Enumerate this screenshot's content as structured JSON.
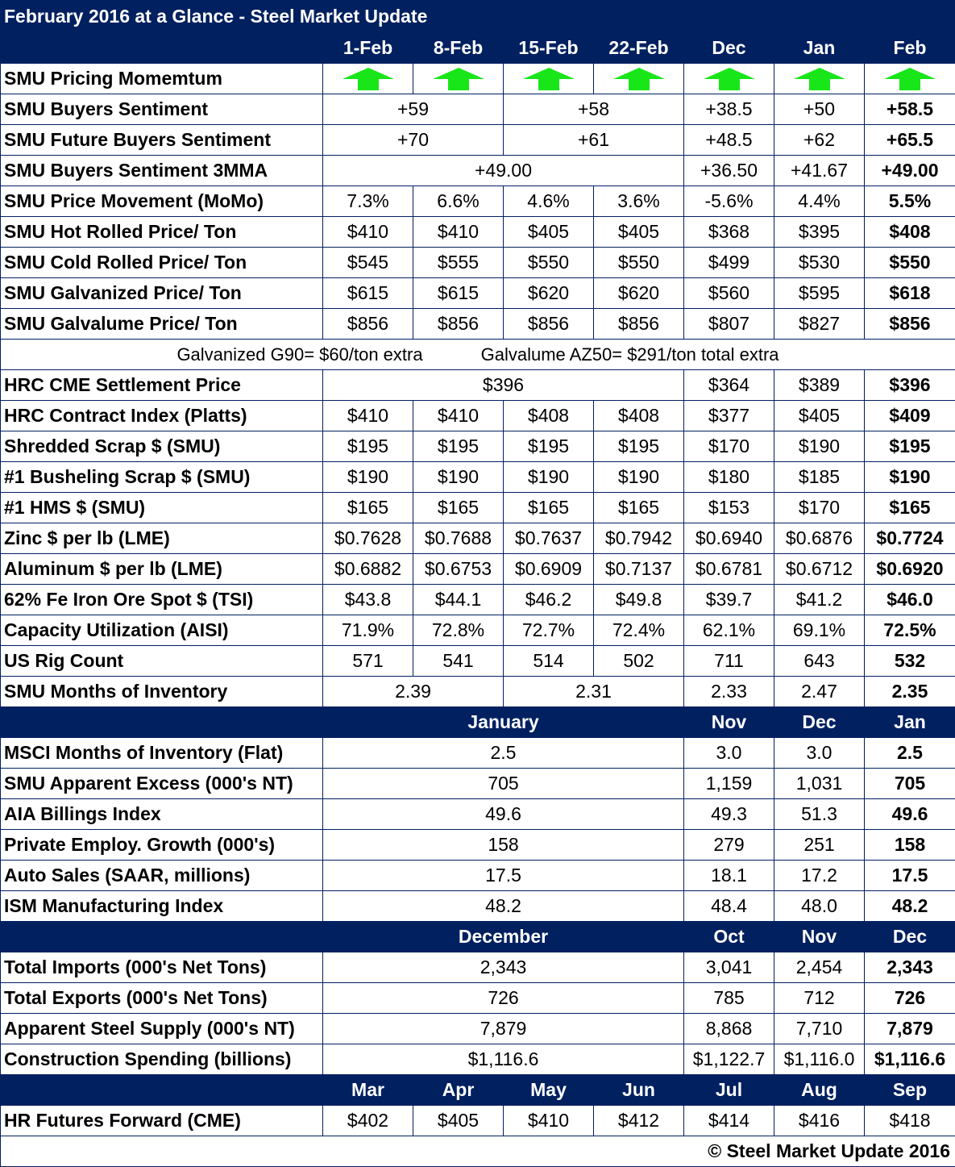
{
  "title": "February 2016 at a Glance - Steel Market Update",
  "colors": {
    "header_bg": "#002060",
    "arrow": "#19E619"
  },
  "header": [
    "1-Feb",
    "8-Feb",
    "15-Feb",
    "22-Feb",
    "Dec",
    "Jan",
    "Feb"
  ],
  "section1": [
    {
      "label": "SMU Pricing Momemtum",
      "cells": [
        {
          "icon": "up-arrow-icon"
        },
        {
          "icon": "up-arrow-icon"
        },
        {
          "icon": "up-arrow-icon"
        },
        {
          "icon": "up-arrow-icon"
        },
        {
          "icon": "up-arrow-icon"
        },
        {
          "icon": "up-arrow-icon"
        },
        {
          "icon": "up-arrow-icon"
        }
      ]
    },
    {
      "label": "SMU Buyers Sentiment",
      "cells": [
        {
          "v": "+59",
          "span": 2
        },
        {
          "v": "+58",
          "span": 2
        },
        {
          "v": "+38.5"
        },
        {
          "v": "+50"
        },
        {
          "v": "+58.5"
        }
      ]
    },
    {
      "label": "SMU Future Buyers Sentiment",
      "cells": [
        {
          "v": "+70",
          "span": 2
        },
        {
          "v": "+61",
          "span": 2
        },
        {
          "v": "+48.5"
        },
        {
          "v": "+62"
        },
        {
          "v": "+65.5"
        }
      ]
    },
    {
      "label": "SMU Buyers Sentiment 3MMA",
      "cells": [
        {
          "v": "+49.00",
          "span": 4
        },
        {
          "v": "+36.50"
        },
        {
          "v": "+41.67"
        },
        {
          "v": "+49.00"
        }
      ]
    },
    {
      "label": "SMU Price Movement (MoMo)",
      "cells": [
        {
          "v": "7.3%"
        },
        {
          "v": "6.6%"
        },
        {
          "v": "4.6%"
        },
        {
          "v": "3.6%"
        },
        {
          "v": "-5.6%"
        },
        {
          "v": "4.4%"
        },
        {
          "v": "5.5%"
        }
      ]
    },
    {
      "label": "SMU Hot Rolled Price/ Ton",
      "cells": [
        {
          "v": "$410"
        },
        {
          "v": "$410"
        },
        {
          "v": "$405"
        },
        {
          "v": "$405"
        },
        {
          "v": "$368"
        },
        {
          "v": "$395"
        },
        {
          "v": "$408"
        }
      ]
    },
    {
      "label": "SMU Cold Rolled Price/ Ton",
      "cells": [
        {
          "v": "$545"
        },
        {
          "v": "$555"
        },
        {
          "v": "$550"
        },
        {
          "v": "$550"
        },
        {
          "v": "$499"
        },
        {
          "v": "$530"
        },
        {
          "v": "$550"
        }
      ]
    },
    {
      "label": "SMU Galvanized Price/ Ton",
      "cells": [
        {
          "v": "$615"
        },
        {
          "v": "$615"
        },
        {
          "v": "$620"
        },
        {
          "v": "$620"
        },
        {
          "v": "$560"
        },
        {
          "v": "$595"
        },
        {
          "v": "$618"
        }
      ]
    },
    {
      "label": "SMU Galvalume Price/ Ton",
      "cells": [
        {
          "v": "$856"
        },
        {
          "v": "$856"
        },
        {
          "v": "$856"
        },
        {
          "v": "$856"
        },
        {
          "v": "$807"
        },
        {
          "v": "$827"
        },
        {
          "v": "$856"
        }
      ]
    }
  ],
  "note": [
    "Galvanized G90= $60/ton extra",
    "Galvalume AZ50= $291/ton total extra"
  ],
  "section2": [
    {
      "label": "HRC CME Settlement Price",
      "cells": [
        {
          "v": "$396",
          "span": 4
        },
        {
          "v": "$364"
        },
        {
          "v": "$389"
        },
        {
          "v": "$396"
        }
      ]
    },
    {
      "label": "HRC Contract Index (Platts)",
      "cells": [
        {
          "v": "$410"
        },
        {
          "v": "$410"
        },
        {
          "v": "$408"
        },
        {
          "v": "$408"
        },
        {
          "v": "$377"
        },
        {
          "v": "$405"
        },
        {
          "v": "$409"
        }
      ]
    },
    {
      "label": "Shredded Scrap $ (SMU)",
      "cells": [
        {
          "v": "$195"
        },
        {
          "v": "$195"
        },
        {
          "v": "$195"
        },
        {
          "v": "$195"
        },
        {
          "v": "$170"
        },
        {
          "v": "$190"
        },
        {
          "v": "$195"
        }
      ]
    },
    {
      "label": "#1 Busheling Scrap $ (SMU)",
      "cells": [
        {
          "v": "$190"
        },
        {
          "v": "$190"
        },
        {
          "v": "$190"
        },
        {
          "v": "$190"
        },
        {
          "v": "$180"
        },
        {
          "v": "$185"
        },
        {
          "v": "$190"
        }
      ]
    },
    {
      "label": "#1 HMS $ (SMU)",
      "cells": [
        {
          "v": "$165"
        },
        {
          "v": "$165"
        },
        {
          "v": "$165"
        },
        {
          "v": "$165"
        },
        {
          "v": "$153"
        },
        {
          "v": "$170"
        },
        {
          "v": "$165"
        }
      ]
    },
    {
      "label": "Zinc $ per lb (LME)",
      "cells": [
        {
          "v": "$0.7628"
        },
        {
          "v": "$0.7688"
        },
        {
          "v": "$0.7637"
        },
        {
          "v": "$0.7942"
        },
        {
          "v": "$0.6940"
        },
        {
          "v": "$0.6876"
        },
        {
          "v": "$0.7724"
        }
      ]
    },
    {
      "label": "Aluminum $ per lb (LME)",
      "cells": [
        {
          "v": "$0.6882"
        },
        {
          "v": "$0.6753"
        },
        {
          "v": "$0.6909"
        },
        {
          "v": "$0.7137"
        },
        {
          "v": "$0.6781"
        },
        {
          "v": "$0.6712"
        },
        {
          "v": "$0.6920"
        }
      ]
    },
    {
      "label": "62% Fe Iron Ore Spot $ (TSI)",
      "cells": [
        {
          "v": "$43.8"
        },
        {
          "v": "$44.1"
        },
        {
          "v": "$46.2"
        },
        {
          "v": "$49.8"
        },
        {
          "v": "$39.7"
        },
        {
          "v": "$41.2"
        },
        {
          "v": "$46.0"
        }
      ]
    },
    {
      "label": "Capacity Utilization (AISI)",
      "cells": [
        {
          "v": "71.9%"
        },
        {
          "v": "72.8%"
        },
        {
          "v": "72.7%"
        },
        {
          "v": "72.4%"
        },
        {
          "v": "62.1%"
        },
        {
          "v": "69.1%"
        },
        {
          "v": "72.5%"
        }
      ]
    },
    {
      "label": "US Rig Count",
      "cells": [
        {
          "v": "571"
        },
        {
          "v": "541"
        },
        {
          "v": "514"
        },
        {
          "v": "502"
        },
        {
          "v": "711"
        },
        {
          "v": "643"
        },
        {
          "v": "532"
        }
      ]
    },
    {
      "label": "SMU Months of Inventory",
      "cells": [
        {
          "v": "2.39",
          "span": 2
        },
        {
          "v": "2.31",
          "span": 2
        },
        {
          "v": "2.33"
        },
        {
          "v": "2.47"
        },
        {
          "v": "2.35"
        }
      ]
    }
  ],
  "header3": [
    "January",
    "Nov",
    "Dec",
    "Jan"
  ],
  "section3": [
    {
      "label": "MSCI Months of Inventory (Flat)",
      "cells": [
        {
          "v": "2.5",
          "span": 4
        },
        {
          "v": "3.0"
        },
        {
          "v": "3.0"
        },
        {
          "v": "2.5"
        }
      ]
    },
    {
      "label": "SMU Apparent Excess (000's NT)",
      "cells": [
        {
          "v": "705",
          "span": 4
        },
        {
          "v": "1,159"
        },
        {
          "v": "1,031"
        },
        {
          "v": "705"
        }
      ]
    },
    {
      "label": "AIA Billings Index",
      "cells": [
        {
          "v": "49.6",
          "span": 4
        },
        {
          "v": "49.3"
        },
        {
          "v": "51.3"
        },
        {
          "v": "49.6"
        }
      ]
    },
    {
      "label": "Private Employ. Growth (000's)",
      "cells": [
        {
          "v": "158",
          "span": 4
        },
        {
          "v": "279"
        },
        {
          "v": "251"
        },
        {
          "v": "158"
        }
      ]
    },
    {
      "label": "Auto Sales (SAAR, millions)",
      "cells": [
        {
          "v": "17.5",
          "span": 4
        },
        {
          "v": "18.1"
        },
        {
          "v": "17.2"
        },
        {
          "v": "17.5"
        }
      ]
    },
    {
      "label": "ISM Manufacturing Index",
      "cells": [
        {
          "v": "48.2",
          "span": 4
        },
        {
          "v": "48.4"
        },
        {
          "v": "48.0"
        },
        {
          "v": "48.2"
        }
      ]
    }
  ],
  "header4": [
    "December",
    "Oct",
    "Nov",
    "Dec"
  ],
  "section4": [
    {
      "label": "Total Imports (000's Net Tons)",
      "cells": [
        {
          "v": "2,343",
          "span": 4
        },
        {
          "v": "3,041"
        },
        {
          "v": "2,454"
        },
        {
          "v": "2,343"
        }
      ]
    },
    {
      "label": "Total Exports (000's Net Tons)",
      "cells": [
        {
          "v": "726",
          "span": 4
        },
        {
          "v": "785"
        },
        {
          "v": "712"
        },
        {
          "v": "726"
        }
      ]
    },
    {
      "label": "Apparent Steel Supply (000's NT)",
      "cells": [
        {
          "v": "7,879",
          "span": 4
        },
        {
          "v": "8,868"
        },
        {
          "v": "7,710"
        },
        {
          "v": "7,879"
        }
      ]
    },
    {
      "label": "Construction Spending (billions)",
      "cells": [
        {
          "v": "$1,116.6",
          "span": 4
        },
        {
          "v": "$1,122.7"
        },
        {
          "v": "$1,116.0"
        },
        {
          "v": "$1,116.6"
        }
      ]
    }
  ],
  "header5": [
    "Mar",
    "Apr",
    "May",
    "Jun",
    "Jul",
    "Aug",
    "Sep"
  ],
  "section5": [
    {
      "label": "HR Futures Forward (CME)",
      "cells": [
        {
          "v": "$402"
        },
        {
          "v": "$405"
        },
        {
          "v": "$410"
        },
        {
          "v": "$412"
        },
        {
          "v": "$414"
        },
        {
          "v": "$416"
        },
        {
          "v": "$418"
        }
      ]
    }
  ],
  "footer": "© Steel Market Update 2016"
}
